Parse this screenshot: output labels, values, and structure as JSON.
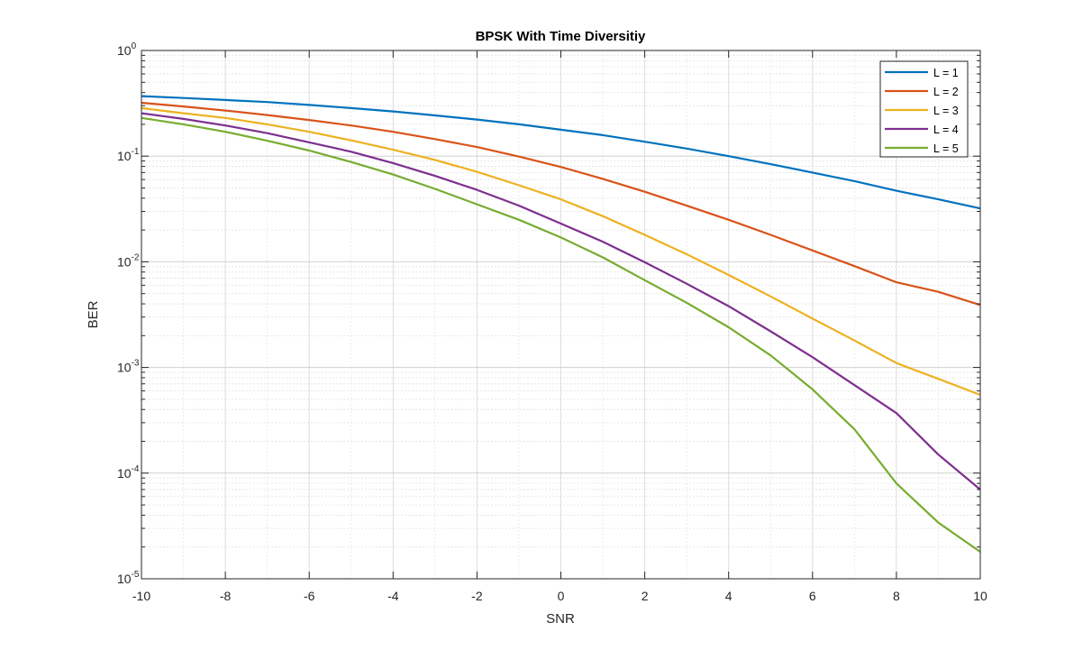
{
  "chart_data": {
    "type": "line",
    "title": "BPSK With Time Diversitiy",
    "xlabel": "SNR",
    "ylabel": "BER",
    "xlim": [
      -10,
      10
    ],
    "ylim": [
      1e-05,
      1
    ],
    "yscale": "log",
    "grid": true,
    "minor_grid": true,
    "legend_position": "top-right",
    "x_ticks": [
      "-10",
      "-8",
      "-6",
      "-4",
      "-2",
      "0",
      "2",
      "4",
      "6",
      "8",
      "10"
    ],
    "y_ticks": [
      {
        "base": "10",
        "exp": "-5"
      },
      {
        "base": "10",
        "exp": "-4"
      },
      {
        "base": "10",
        "exp": "-3"
      },
      {
        "base": "10",
        "exp": "-2"
      },
      {
        "base": "10",
        "exp": "-1"
      },
      {
        "base": "10",
        "exp": "0"
      }
    ],
    "x": [
      -10,
      -9,
      -8,
      -7,
      -6,
      -5,
      -4,
      -3,
      -2,
      -1,
      0,
      1,
      2,
      3,
      4,
      5,
      6,
      7,
      8,
      9,
      10
    ],
    "series": [
      {
        "name": "L = 1",
        "color": "#0072BD",
        "values": [
          0.37,
          0.355,
          0.34,
          0.325,
          0.305,
          0.285,
          0.265,
          0.243,
          0.222,
          0.2,
          0.178,
          0.158,
          0.137,
          0.118,
          0.1,
          0.084,
          0.07,
          0.058,
          0.047,
          0.039,
          0.032
        ]
      },
      {
        "name": "L = 2",
        "color": "#D95319",
        "values": [
          0.32,
          0.295,
          0.27,
          0.245,
          0.22,
          0.195,
          0.17,
          0.145,
          0.122,
          0.099,
          0.079,
          0.061,
          0.046,
          0.034,
          0.025,
          0.018,
          0.0128,
          0.0091,
          0.0064,
          0.0052,
          0.0039
        ]
      },
      {
        "name": "L = 3",
        "color": "#EDB120",
        "values": [
          0.285,
          0.255,
          0.23,
          0.2,
          0.17,
          0.141,
          0.115,
          0.092,
          0.071,
          0.053,
          0.039,
          0.027,
          0.018,
          0.0118,
          0.0075,
          0.0047,
          0.0029,
          0.0018,
          0.0011,
          0.00078,
          0.00055
        ]
      },
      {
        "name": "L = 4",
        "color": "#7E2F8E",
        "values": [
          0.255,
          0.225,
          0.195,
          0.165,
          0.135,
          0.11,
          0.086,
          0.065,
          0.048,
          0.034,
          0.023,
          0.0155,
          0.0099,
          0.0062,
          0.0038,
          0.0022,
          0.00125,
          0.00068,
          0.00037,
          0.00015,
          7e-05
        ]
      },
      {
        "name": "L = 5",
        "color": "#77AC30",
        "values": [
          0.23,
          0.2,
          0.17,
          0.14,
          0.113,
          0.088,
          0.067,
          0.049,
          0.035,
          0.025,
          0.017,
          0.011,
          0.0067,
          0.0041,
          0.0024,
          0.0013,
          0.00062,
          0.00026,
          8e-05,
          3.4e-05,
          1.8e-05
        ]
      }
    ]
  }
}
